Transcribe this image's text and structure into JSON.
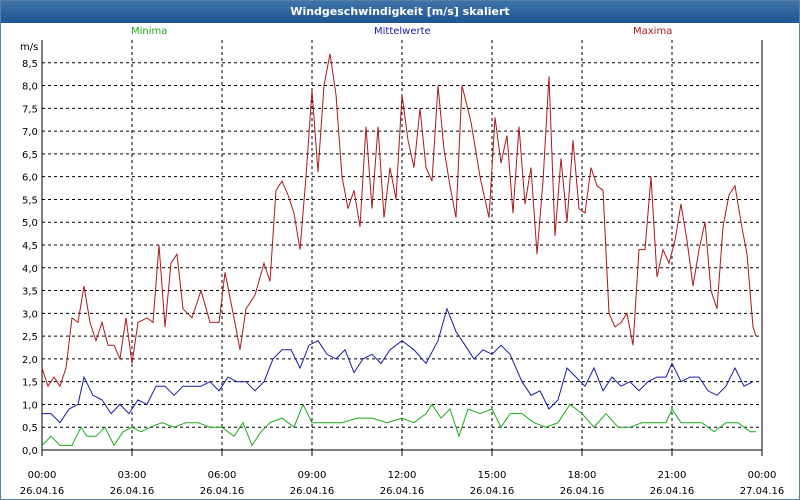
{
  "window": {
    "title": "Windgeschwindigkeit [m/s] skaliert"
  },
  "colors": {
    "minima": "#1aaa1a",
    "mittelwerte": "#1a1aaa",
    "maxima": "#aa1a1a",
    "titlebar": "#2a64a0"
  },
  "chart_data": {
    "type": "line",
    "title": "Windgeschwindigkeit [m/s] skaliert",
    "ylabel": "m/s",
    "ylim": [
      0,
      9
    ],
    "yticks": [
      0,
      0.5,
      1,
      1.5,
      2,
      2.5,
      3,
      3.5,
      4,
      4.5,
      5,
      5.5,
      6,
      6.5,
      7,
      7.5,
      8,
      8.5
    ],
    "ytick_labels": [
      "0,0",
      "0,5",
      "1,0",
      "1,5",
      "2,0",
      "2,5",
      "3,0",
      "3,5",
      "4,0",
      "4,5",
      "5,0",
      "5,5",
      "6,0",
      "6,5",
      "7,0",
      "7,5",
      "8,0",
      "8,5"
    ],
    "x_unit": "hours since 26.04.16 00:00",
    "xlim": [
      0,
      24
    ],
    "xticks": [
      0,
      3,
      6,
      9,
      12,
      15,
      18,
      21,
      24
    ],
    "xtick_labels": [
      [
        "00:00",
        "26.04.16"
      ],
      [
        "03:00",
        "26.04.16"
      ],
      [
        "06:00",
        "26.04.16"
      ],
      [
        "09:00",
        "26.04.16"
      ],
      [
        "12:00",
        "26.04.16"
      ],
      [
        "15:00",
        "26.04.16"
      ],
      [
        "18:00",
        "26.04.16"
      ],
      [
        "21:00",
        "26.04.16"
      ],
      [
        "00:00",
        "27.04.16"
      ]
    ],
    "grid": true,
    "legend_placement": "top",
    "series": [
      {
        "name": "Minima",
        "color": "#1aaa1a",
        "points": [
          [
            0,
            0.1
          ],
          [
            0.3,
            0.3
          ],
          [
            0.6,
            0.1
          ],
          [
            1.0,
            0.1
          ],
          [
            1.3,
            0.5
          ],
          [
            1.5,
            0.3
          ],
          [
            1.8,
            0.3
          ],
          [
            2.1,
            0.5
          ],
          [
            2.4,
            0.1
          ],
          [
            2.7,
            0.4
          ],
          [
            3.0,
            0.5
          ],
          [
            3.3,
            0.4
          ],
          [
            3.6,
            0.5
          ],
          [
            4.0,
            0.6
          ],
          [
            4.4,
            0.5
          ],
          [
            4.8,
            0.6
          ],
          [
            5.2,
            0.6
          ],
          [
            5.6,
            0.5
          ],
          [
            6.0,
            0.5
          ],
          [
            6.4,
            0.3
          ],
          [
            6.7,
            0.6
          ],
          [
            7.0,
            0.1
          ],
          [
            7.3,
            0.4
          ],
          [
            7.6,
            0.6
          ],
          [
            8.0,
            0.7
          ],
          [
            8.4,
            0.5
          ],
          [
            8.7,
            1.0
          ],
          [
            9.0,
            0.6
          ],
          [
            9.5,
            0.6
          ],
          [
            10.0,
            0.6
          ],
          [
            10.5,
            0.7
          ],
          [
            11.0,
            0.7
          ],
          [
            11.5,
            0.6
          ],
          [
            12.0,
            0.7
          ],
          [
            12.4,
            0.6
          ],
          [
            12.8,
            0.8
          ],
          [
            13.0,
            1.0
          ],
          [
            13.3,
            0.7
          ],
          [
            13.6,
            0.9
          ],
          [
            13.9,
            0.3
          ],
          [
            14.2,
            0.9
          ],
          [
            14.6,
            0.8
          ],
          [
            15.0,
            0.9
          ],
          [
            15.3,
            0.5
          ],
          [
            15.6,
            0.8
          ],
          [
            16.0,
            0.8
          ],
          [
            16.4,
            0.6
          ],
          [
            16.8,
            0.5
          ],
          [
            17.2,
            0.6
          ],
          [
            17.6,
            1.0
          ],
          [
            18.0,
            0.8
          ],
          [
            18.4,
            0.5
          ],
          [
            18.8,
            0.8
          ],
          [
            19.2,
            0.5
          ],
          [
            19.6,
            0.5
          ],
          [
            20.0,
            0.6
          ],
          [
            20.4,
            0.6
          ],
          [
            20.8,
            0.6
          ],
          [
            21.0,
            0.9
          ],
          [
            21.3,
            0.6
          ],
          [
            21.6,
            0.6
          ],
          [
            22.0,
            0.6
          ],
          [
            22.4,
            0.4
          ],
          [
            22.8,
            0.6
          ],
          [
            23.2,
            0.6
          ],
          [
            23.6,
            0.4
          ],
          [
            23.8,
            0.4
          ]
        ]
      },
      {
        "name": "Mittelwerte",
        "color": "#1a1aaa",
        "points": [
          [
            0,
            0.8
          ],
          [
            0.3,
            0.8
          ],
          [
            0.6,
            0.6
          ],
          [
            0.9,
            0.9
          ],
          [
            1.2,
            1.0
          ],
          [
            1.4,
            1.6
          ],
          [
            1.7,
            1.2
          ],
          [
            2.0,
            1.1
          ],
          [
            2.3,
            0.8
          ],
          [
            2.6,
            1.0
          ],
          [
            2.9,
            0.8
          ],
          [
            3.2,
            1.1
          ],
          [
            3.5,
            1.0
          ],
          [
            3.8,
            1.4
          ],
          [
            4.1,
            1.4
          ],
          [
            4.4,
            1.2
          ],
          [
            4.7,
            1.4
          ],
          [
            5.0,
            1.4
          ],
          [
            5.3,
            1.4
          ],
          [
            5.6,
            1.5
          ],
          [
            5.9,
            1.3
          ],
          [
            6.2,
            1.6
          ],
          [
            6.5,
            1.5
          ],
          [
            6.8,
            1.5
          ],
          [
            7.1,
            1.3
          ],
          [
            7.4,
            1.5
          ],
          [
            7.7,
            2.0
          ],
          [
            8.0,
            2.2
          ],
          [
            8.3,
            2.2
          ],
          [
            8.6,
            1.8
          ],
          [
            8.9,
            2.3
          ],
          [
            9.2,
            2.4
          ],
          [
            9.5,
            2.1
          ],
          [
            9.8,
            2.0
          ],
          [
            10.1,
            2.2
          ],
          [
            10.4,
            1.7
          ],
          [
            10.7,
            2.0
          ],
          [
            11.0,
            2.1
          ],
          [
            11.3,
            1.9
          ],
          [
            11.6,
            2.2
          ],
          [
            12.0,
            2.4
          ],
          [
            12.4,
            2.2
          ],
          [
            12.8,
            1.9
          ],
          [
            13.2,
            2.4
          ],
          [
            13.5,
            3.1
          ],
          [
            13.8,
            2.6
          ],
          [
            14.1,
            2.3
          ],
          [
            14.4,
            2.0
          ],
          [
            14.7,
            2.2
          ],
          [
            15.0,
            2.1
          ],
          [
            15.3,
            2.3
          ],
          [
            15.6,
            2.1
          ],
          [
            16.0,
            1.5
          ],
          [
            16.3,
            1.2
          ],
          [
            16.6,
            1.3
          ],
          [
            16.9,
            0.9
          ],
          [
            17.2,
            1.1
          ],
          [
            17.5,
            1.8
          ],
          [
            17.8,
            1.6
          ],
          [
            18.1,
            1.4
          ],
          [
            18.4,
            1.8
          ],
          [
            18.7,
            1.3
          ],
          [
            19.0,
            1.6
          ],
          [
            19.3,
            1.4
          ],
          [
            19.6,
            1.5
          ],
          [
            19.9,
            1.3
          ],
          [
            20.2,
            1.5
          ],
          [
            20.5,
            1.6
          ],
          [
            20.8,
            1.6
          ],
          [
            21.0,
            1.9
          ],
          [
            21.3,
            1.5
          ],
          [
            21.6,
            1.6
          ],
          [
            21.9,
            1.6
          ],
          [
            22.2,
            1.3
          ],
          [
            22.5,
            1.2
          ],
          [
            22.8,
            1.4
          ],
          [
            23.1,
            1.8
          ],
          [
            23.4,
            1.4
          ],
          [
            23.7,
            1.5
          ]
        ]
      },
      {
        "name": "Maxima",
        "color": "#aa1a1a",
        "points": [
          [
            0,
            1.8
          ],
          [
            0.2,
            1.4
          ],
          [
            0.4,
            1.6
          ],
          [
            0.6,
            1.4
          ],
          [
            0.8,
            1.8
          ],
          [
            1.0,
            2.9
          ],
          [
            1.2,
            2.8
          ],
          [
            1.4,
            3.6
          ],
          [
            1.6,
            2.8
          ],
          [
            1.8,
            2.4
          ],
          [
            2.0,
            2.8
          ],
          [
            2.2,
            2.3
          ],
          [
            2.4,
            2.3
          ],
          [
            2.6,
            2.0
          ],
          [
            2.8,
            2.9
          ],
          [
            3.0,
            1.9
          ],
          [
            3.2,
            2.8
          ],
          [
            3.5,
            2.9
          ],
          [
            3.7,
            2.8
          ],
          [
            3.9,
            4.5
          ],
          [
            4.1,
            2.7
          ],
          [
            4.3,
            4.1
          ],
          [
            4.5,
            4.3
          ],
          [
            4.7,
            3.1
          ],
          [
            5.0,
            2.9
          ],
          [
            5.3,
            3.5
          ],
          [
            5.6,
            2.8
          ],
          [
            5.9,
            2.8
          ],
          [
            6.1,
            3.9
          ],
          [
            6.4,
            2.9
          ],
          [
            6.6,
            2.2
          ],
          [
            6.8,
            3.1
          ],
          [
            7.1,
            3.4
          ],
          [
            7.4,
            4.1
          ],
          [
            7.6,
            3.7
          ],
          [
            7.8,
            5.7
          ],
          [
            8.0,
            5.9
          ],
          [
            8.2,
            5.6
          ],
          [
            8.4,
            5.2
          ],
          [
            8.6,
            4.4
          ],
          [
            8.8,
            6.0
          ],
          [
            9.0,
            7.9
          ],
          [
            9.2,
            6.1
          ],
          [
            9.4,
            8.0
          ],
          [
            9.6,
            8.7
          ],
          [
            9.8,
            7.8
          ],
          [
            10.0,
            6.0
          ],
          [
            10.2,
            5.3
          ],
          [
            10.4,
            5.7
          ],
          [
            10.6,
            4.9
          ],
          [
            10.8,
            7.1
          ],
          [
            11.0,
            5.3
          ],
          [
            11.2,
            7.1
          ],
          [
            11.4,
            5.1
          ],
          [
            11.6,
            6.2
          ],
          [
            11.8,
            5.5
          ],
          [
            12.0,
            7.8
          ],
          [
            12.2,
            6.8
          ],
          [
            12.4,
            6.2
          ],
          [
            12.6,
            7.5
          ],
          [
            12.8,
            6.2
          ],
          [
            13.0,
            5.9
          ],
          [
            13.2,
            8.0
          ],
          [
            13.4,
            6.6
          ],
          [
            13.6,
            5.8
          ],
          [
            13.8,
            5.1
          ],
          [
            14.0,
            8.0
          ],
          [
            14.3,
            7.2
          ],
          [
            14.6,
            6.0
          ],
          [
            14.9,
            5.1
          ],
          [
            15.1,
            7.3
          ],
          [
            15.3,
            6.3
          ],
          [
            15.5,
            6.9
          ],
          [
            15.7,
            5.2
          ],
          [
            15.9,
            7.1
          ],
          [
            16.1,
            5.4
          ],
          [
            16.3,
            6.2
          ],
          [
            16.5,
            4.3
          ],
          [
            16.7,
            5.9
          ],
          [
            16.9,
            8.2
          ],
          [
            17.1,
            4.7
          ],
          [
            17.3,
            6.4
          ],
          [
            17.5,
            5.0
          ],
          [
            17.7,
            6.8
          ],
          [
            17.9,
            5.3
          ],
          [
            18.1,
            5.2
          ],
          [
            18.3,
            6.2
          ],
          [
            18.5,
            5.8
          ],
          [
            18.7,
            5.7
          ],
          [
            18.9,
            3.0
          ],
          [
            19.1,
            2.7
          ],
          [
            19.3,
            2.8
          ],
          [
            19.5,
            3.0
          ],
          [
            19.7,
            2.3
          ],
          [
            19.9,
            4.4
          ],
          [
            20.1,
            4.4
          ],
          [
            20.3,
            6.0
          ],
          [
            20.5,
            3.8
          ],
          [
            20.7,
            4.4
          ],
          [
            20.9,
            4.1
          ],
          [
            21.1,
            4.6
          ],
          [
            21.3,
            5.4
          ],
          [
            21.5,
            4.6
          ],
          [
            21.7,
            3.6
          ],
          [
            21.9,
            4.4
          ],
          [
            22.1,
            5.0
          ],
          [
            22.3,
            3.5
          ],
          [
            22.5,
            3.1
          ],
          [
            22.7,
            4.9
          ],
          [
            22.9,
            5.6
          ],
          [
            23.1,
            5.8
          ],
          [
            23.3,
            5.0
          ],
          [
            23.5,
            4.3
          ],
          [
            23.7,
            2.7
          ],
          [
            23.8,
            2.5
          ]
        ]
      }
    ]
  }
}
